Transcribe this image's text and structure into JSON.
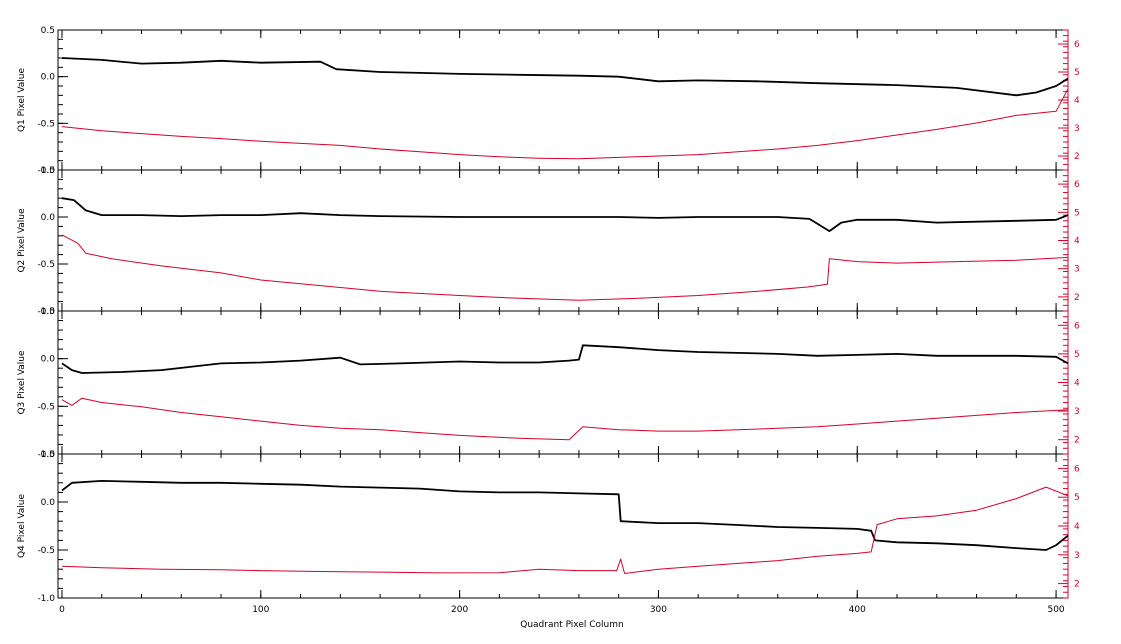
{
  "chart_data": {
    "type": "line",
    "xlabel": "Quadrant Pixel Column",
    "xlim": [
      -2,
      506
    ],
    "x_ticks": [
      0,
      100,
      200,
      300,
      400,
      500
    ],
    "left_ylim": [
      -1.0,
      0.5
    ],
    "left_ticks": [
      0.5,
      0.0,
      -0.5,
      -1.0
    ],
    "left_tick_labels": [
      "0.5",
      "0.0",
      "-0.5",
      "-1.0"
    ],
    "right_ylim": [
      1.5,
      6.5
    ],
    "right_ticks": [
      2,
      3,
      4,
      5,
      6
    ],
    "grid": false,
    "colors": {
      "black_series": "#000000",
      "red_series": "#d8002a",
      "right_axis": "#d8002a"
    },
    "panels": [
      {
        "ylabel": "Q1 Pixel Value",
        "series": [
          {
            "color": "#000000",
            "points": [
              [
                0,
                0.2
              ],
              [
                20,
                0.18
              ],
              [
                40,
                0.14
              ],
              [
                60,
                0.15
              ],
              [
                80,
                0.17
              ],
              [
                100,
                0.15
              ],
              [
                130,
                0.16
              ],
              [
                138,
                0.08
              ],
              [
                160,
                0.05
              ],
              [
                180,
                0.04
              ],
              [
                200,
                0.03
              ],
              [
                230,
                0.02
              ],
              [
                260,
                0.01
              ],
              [
                280,
                0.0
              ],
              [
                300,
                -0.05
              ],
              [
                320,
                -0.04
              ],
              [
                350,
                -0.05
              ],
              [
                380,
                -0.07
              ],
              [
                420,
                -0.09
              ],
              [
                450,
                -0.12
              ],
              [
                480,
                -0.2
              ],
              [
                490,
                -0.17
              ],
              [
                500,
                -0.1
              ],
              [
                506,
                -0.02
              ]
            ]
          },
          {
            "color": "#d8002a",
            "points": [
              [
                0,
                3.05
              ],
              [
                20,
                2.9
              ],
              [
                40,
                2.8
              ],
              [
                60,
                2.7
              ],
              [
                80,
                2.62
              ],
              [
                100,
                2.53
              ],
              [
                120,
                2.45
              ],
              [
                140,
                2.38
              ],
              [
                160,
                2.25
              ],
              [
                180,
                2.15
              ],
              [
                200,
                2.05
              ],
              [
                220,
                1.97
              ],
              [
                240,
                1.92
              ],
              [
                260,
                1.9
              ],
              [
                280,
                1.95
              ],
              [
                300,
                2.0
              ],
              [
                320,
                2.05
              ],
              [
                340,
                2.15
              ],
              [
                360,
                2.25
              ],
              [
                380,
                2.38
              ],
              [
                400,
                2.55
              ],
              [
                420,
                2.75
              ],
              [
                440,
                2.95
              ],
              [
                460,
                3.18
              ],
              [
                480,
                3.45
              ],
              [
                500,
                3.6
              ],
              [
                506,
                4.4
              ]
            ]
          }
        ]
      },
      {
        "ylabel": "Q2 Pixel Value",
        "series": [
          {
            "color": "#000000",
            "points": [
              [
                0,
                0.2
              ],
              [
                6,
                0.18
              ],
              [
                12,
                0.07
              ],
              [
                20,
                0.02
              ],
              [
                40,
                0.02
              ],
              [
                60,
                0.01
              ],
              [
                80,
                0.02
              ],
              [
                100,
                0.02
              ],
              [
                120,
                0.04
              ],
              [
                140,
                0.02
              ],
              [
                160,
                0.01
              ],
              [
                200,
                0.0
              ],
              [
                240,
                0.0
              ],
              [
                280,
                0.0
              ],
              [
                300,
                -0.01
              ],
              [
                320,
                0.0
              ],
              [
                340,
                0.0
              ],
              [
                360,
                0.0
              ],
              [
                376,
                -0.02
              ],
              [
                386,
                -0.15
              ],
              [
                392,
                -0.06
              ],
              [
                400,
                -0.03
              ],
              [
                420,
                -0.03
              ],
              [
                440,
                -0.06
              ],
              [
                460,
                -0.05
              ],
              [
                480,
                -0.04
              ],
              [
                500,
                -0.03
              ],
              [
                506,
                0.02
              ]
            ]
          },
          {
            "color": "#d8002a",
            "points": [
              [
                0,
                4.2
              ],
              [
                8,
                3.9
              ],
              [
                12,
                3.55
              ],
              [
                25,
                3.35
              ],
              [
                50,
                3.1
              ],
              [
                80,
                2.85
              ],
              [
                100,
                2.6
              ],
              [
                130,
                2.4
              ],
              [
                160,
                2.2
              ],
              [
                200,
                2.05
              ],
              [
                230,
                1.95
              ],
              [
                260,
                1.88
              ],
              [
                290,
                1.95
              ],
              [
                320,
                2.05
              ],
              [
                350,
                2.2
              ],
              [
                375,
                2.35
              ],
              [
                385,
                2.45
              ],
              [
                386,
                3.35
              ],
              [
                400,
                3.25
              ],
              [
                420,
                3.2
              ],
              [
                450,
                3.25
              ],
              [
                480,
                3.3
              ],
              [
                506,
                3.4
              ]
            ]
          }
        ]
      },
      {
        "ylabel": "Q3 Pixel Value",
        "series": [
          {
            "color": "#000000",
            "points": [
              [
                0,
                -0.05
              ],
              [
                5,
                -0.12
              ],
              [
                10,
                -0.15
              ],
              [
                30,
                -0.14
              ],
              [
                50,
                -0.12
              ],
              [
                80,
                -0.05
              ],
              [
                100,
                -0.04
              ],
              [
                120,
                -0.02
              ],
              [
                140,
                0.01
              ],
              [
                150,
                -0.06
              ],
              [
                170,
                -0.05
              ],
              [
                200,
                -0.03
              ],
              [
                220,
                -0.04
              ],
              [
                240,
                -0.04
              ],
              [
                255,
                -0.02
              ],
              [
                260,
                -0.01
              ],
              [
                262,
                0.14
              ],
              [
                280,
                0.12
              ],
              [
                300,
                0.09
              ],
              [
                320,
                0.07
              ],
              [
                340,
                0.06
              ],
              [
                360,
                0.05
              ],
              [
                380,
                0.03
              ],
              [
                400,
                0.04
              ],
              [
                420,
                0.05
              ],
              [
                440,
                0.03
              ],
              [
                460,
                0.03
              ],
              [
                480,
                0.03
              ],
              [
                500,
                0.02
              ],
              [
                506,
                -0.05
              ]
            ]
          },
          {
            "color": "#d8002a",
            "points": [
              [
                0,
                3.4
              ],
              [
                5,
                3.2
              ],
              [
                10,
                3.45
              ],
              [
                20,
                3.3
              ],
              [
                40,
                3.15
              ],
              [
                60,
                2.95
              ],
              [
                80,
                2.8
              ],
              [
                100,
                2.65
              ],
              [
                120,
                2.5
              ],
              [
                140,
                2.4
              ],
              [
                160,
                2.35
              ],
              [
                180,
                2.25
              ],
              [
                200,
                2.15
              ],
              [
                230,
                2.05
              ],
              [
                255,
                2.0
              ],
              [
                262,
                2.45
              ],
              [
                280,
                2.35
              ],
              [
                300,
                2.3
              ],
              [
                320,
                2.3
              ],
              [
                340,
                2.35
              ],
              [
                360,
                2.4
              ],
              [
                380,
                2.45
              ],
              [
                400,
                2.55
              ],
              [
                420,
                2.65
              ],
              [
                440,
                2.75
              ],
              [
                460,
                2.85
              ],
              [
                480,
                2.95
              ],
              [
                506,
                3.05
              ]
            ]
          }
        ]
      },
      {
        "ylabel": "Q4 Pixel Value",
        "series": [
          {
            "color": "#000000",
            "points": [
              [
                0,
                0.12
              ],
              [
                5,
                0.2
              ],
              [
                20,
                0.22
              ],
              [
                40,
                0.21
              ],
              [
                60,
                0.2
              ],
              [
                80,
                0.2
              ],
              [
                100,
                0.19
              ],
              [
                120,
                0.18
              ],
              [
                140,
                0.16
              ],
              [
                160,
                0.15
              ],
              [
                180,
                0.14
              ],
              [
                200,
                0.11
              ],
              [
                220,
                0.1
              ],
              [
                240,
                0.1
              ],
              [
                260,
                0.09
              ],
              [
                280,
                0.08
              ],
              [
                281,
                -0.2
              ],
              [
                300,
                -0.22
              ],
              [
                320,
                -0.22
              ],
              [
                340,
                -0.24
              ],
              [
                360,
                -0.26
              ],
              [
                380,
                -0.27
              ],
              [
                400,
                -0.28
              ],
              [
                407,
                -0.3
              ],
              [
                409,
                -0.4
              ],
              [
                420,
                -0.42
              ],
              [
                440,
                -0.43
              ],
              [
                460,
                -0.45
              ],
              [
                480,
                -0.48
              ],
              [
                495,
                -0.5
              ],
              [
                500,
                -0.45
              ],
              [
                506,
                -0.35
              ]
            ]
          },
          {
            "color": "#d8002a",
            "points": [
              [
                0,
                2.6
              ],
              [
                20,
                2.55
              ],
              [
                50,
                2.5
              ],
              [
                80,
                2.48
              ],
              [
                100,
                2.45
              ],
              [
                130,
                2.42
              ],
              [
                160,
                2.4
              ],
              [
                190,
                2.37
              ],
              [
                220,
                2.38
              ],
              [
                240,
                2.5
              ],
              [
                260,
                2.45
              ],
              [
                279,
                2.45
              ],
              [
                281,
                2.85
              ],
              [
                283,
                2.35
              ],
              [
                300,
                2.5
              ],
              [
                320,
                2.6
              ],
              [
                340,
                2.7
              ],
              [
                360,
                2.8
              ],
              [
                380,
                2.95
              ],
              [
                400,
                3.05
              ],
              [
                407,
                3.1
              ],
              [
                410,
                4.05
              ],
              [
                420,
                4.25
              ],
              [
                440,
                4.35
              ],
              [
                460,
                4.55
              ],
              [
                480,
                4.95
              ],
              [
                495,
                5.35
              ],
              [
                506,
                5.05
              ]
            ]
          }
        ]
      }
    ]
  }
}
